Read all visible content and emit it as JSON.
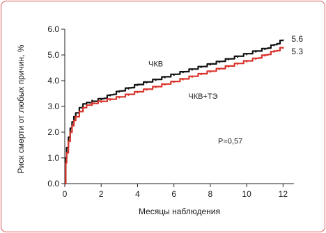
{
  "chart_data": {
    "type": "line",
    "xlabel": "Месяцы наблюдения",
    "ylabel": "Риск смерти от любых причин, %",
    "xlim": [
      0,
      12.6
    ],
    "ylim": [
      0,
      6.0
    ],
    "x_ticks": [
      0,
      2,
      4,
      6,
      8,
      10,
      12
    ],
    "y_ticks": [
      0.0,
      1.0,
      2.0,
      3.0,
      4.0,
      5.0,
      6.0
    ],
    "y_tick_labels": [
      "0.0",
      "1.0",
      "2.0",
      "3.0",
      "4.0",
      "5.0",
      "6.0"
    ],
    "x_tick_labels": [
      "0",
      "2",
      "4",
      "6",
      "8",
      "10",
      "12"
    ],
    "grid": false,
    "series": [
      {
        "name": "ЧКВ",
        "color": "#111111",
        "end_label": "5.6",
        "x": [
          0,
          0.05,
          0.1,
          0.2,
          0.3,
          0.4,
          0.5,
          0.6,
          0.8,
          1.0,
          1.2,
          1.5,
          2.0,
          2.5,
          3.0,
          3.5,
          4.0,
          4.5,
          5.0,
          5.5,
          6.0,
          6.5,
          7.0,
          7.5,
          8.0,
          8.5,
          9.0,
          9.5,
          10.0,
          10.5,
          11.0,
          11.5,
          12.0
        ],
        "y": [
          0,
          1.0,
          1.4,
          1.8,
          2.15,
          2.4,
          2.6,
          2.75,
          2.95,
          3.1,
          3.15,
          3.2,
          3.3,
          3.45,
          3.6,
          3.72,
          3.85,
          3.95,
          4.05,
          4.15,
          4.25,
          4.35,
          4.45,
          4.55,
          4.65,
          4.75,
          4.85,
          4.95,
          5.05,
          5.15,
          5.25,
          5.4,
          5.6
        ]
      },
      {
        "name": "ЧКВ+ТЭ",
        "color": "#d9342b",
        "end_label": "5.3",
        "x": [
          0,
          0.05,
          0.1,
          0.2,
          0.3,
          0.4,
          0.5,
          0.6,
          0.8,
          1.0,
          1.2,
          1.5,
          2.0,
          2.5,
          3.0,
          3.5,
          4.0,
          4.5,
          5.0,
          5.5,
          6.0,
          6.5,
          7.0,
          7.5,
          8.0,
          8.5,
          9.0,
          9.5,
          10.0,
          10.5,
          11.0,
          11.5,
          12.0
        ],
        "y": [
          0,
          0.8,
          1.2,
          1.65,
          2.0,
          2.25,
          2.45,
          2.6,
          2.8,
          2.95,
          3.05,
          3.12,
          3.2,
          3.28,
          3.37,
          3.47,
          3.57,
          3.67,
          3.77,
          3.87,
          3.97,
          4.07,
          4.17,
          4.27,
          4.37,
          4.47,
          4.57,
          4.67,
          4.77,
          4.87,
          5.0,
          5.15,
          5.3
        ]
      }
    ],
    "annotations": [
      {
        "text": "P=0,57",
        "x": 9.1,
        "y": 1.55
      }
    ],
    "series_label_positions": [
      {
        "x": 5.0,
        "y": 4.55
      },
      {
        "x": 7.6,
        "y": 3.3
      }
    ]
  }
}
